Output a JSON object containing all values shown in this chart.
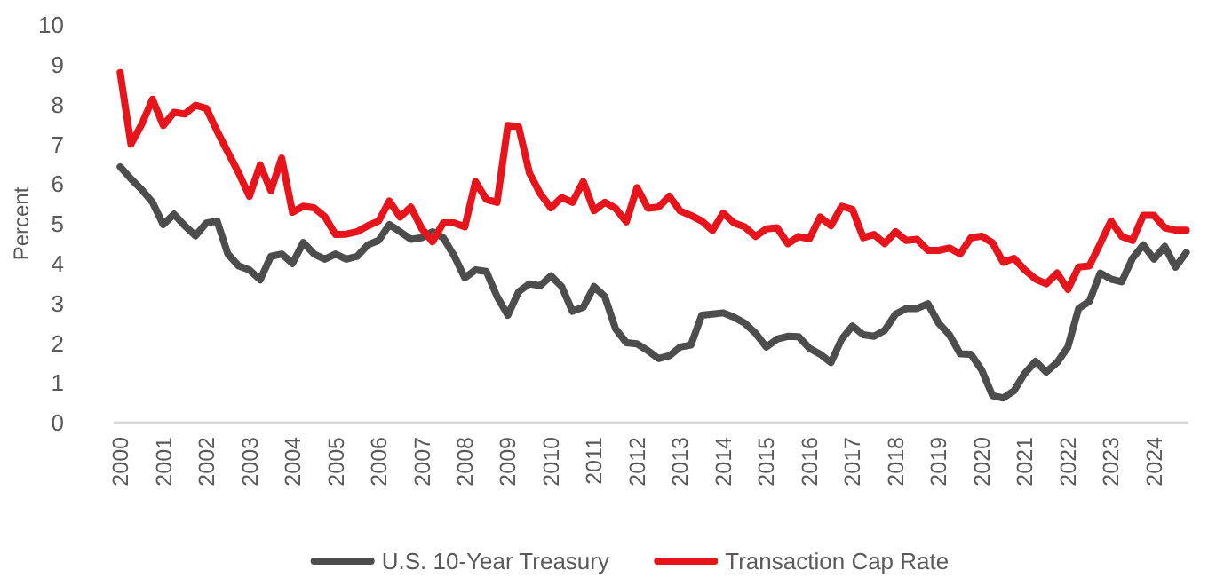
{
  "chart_data": {
    "type": "line",
    "ylabel": "Percent",
    "x": [
      2000,
      2000.25,
      2000.5,
      2000.75,
      2001,
      2001.25,
      2001.5,
      2001.75,
      2002,
      2002.25,
      2002.5,
      2002.75,
      2003,
      2003.25,
      2003.5,
      2003.75,
      2004,
      2004.25,
      2004.5,
      2004.75,
      2005,
      2005.25,
      2005.5,
      2005.75,
      2006,
      2006.25,
      2006.5,
      2006.75,
      2007,
      2007.25,
      2007.5,
      2007.75,
      2008,
      2008.25,
      2008.5,
      2008.75,
      2009,
      2009.25,
      2009.5,
      2009.75,
      2010,
      2010.25,
      2010.5,
      2010.75,
      2011,
      2011.25,
      2011.5,
      2011.75,
      2012,
      2012.25,
      2012.5,
      2012.75,
      2013,
      2013.25,
      2013.5,
      2013.75,
      2014,
      2014.25,
      2014.5,
      2014.75,
      2015,
      2015.25,
      2015.5,
      2015.75,
      2016,
      2016.25,
      2016.5,
      2016.75,
      2017,
      2017.25,
      2017.5,
      2017.75,
      2018,
      2018.25,
      2018.5,
      2018.75,
      2019,
      2019.25,
      2019.5,
      2019.75,
      2020,
      2020.25,
      2020.5,
      2020.75,
      2021,
      2021.25,
      2021.5,
      2021.75,
      2022,
      2022.25,
      2022.5,
      2022.75,
      2023,
      2023.25,
      2023.5,
      2023.75,
      2024,
      2024.25,
      2024.5,
      2024.75
    ],
    "series": [
      {
        "name": "U.S. 10-Year Treasury",
        "color": "#4d4d4d",
        "values": [
          6.43,
          6.13,
          5.86,
          5.54,
          4.98,
          5.24,
          4.95,
          4.7,
          5.02,
          5.07,
          4.24,
          3.94,
          3.84,
          3.59,
          4.18,
          4.24,
          4.0,
          4.53,
          4.24,
          4.11,
          4.24,
          4.11,
          4.18,
          4.47,
          4.58,
          4.98,
          4.8,
          4.61,
          4.65,
          4.8,
          4.65,
          4.2,
          3.64,
          3.84,
          3.8,
          3.17,
          2.7,
          3.29,
          3.49,
          3.44,
          3.69,
          3.42,
          2.8,
          2.9,
          3.42,
          3.17,
          2.36,
          2.01,
          1.98,
          1.81,
          1.61,
          1.68,
          1.9,
          1.95,
          2.7,
          2.73,
          2.76,
          2.65,
          2.5,
          2.25,
          1.9,
          2.1,
          2.17,
          2.16,
          1.87,
          1.72,
          1.51,
          2.1,
          2.43,
          2.21,
          2.17,
          2.32,
          2.73,
          2.87,
          2.87,
          2.99,
          2.5,
          2.21,
          1.73,
          1.72,
          1.32,
          0.68,
          0.62,
          0.8,
          1.24,
          1.54,
          1.27,
          1.51,
          1.9,
          2.87,
          3.05,
          3.76,
          3.61,
          3.54,
          4.13,
          4.47,
          4.11,
          4.43,
          3.91,
          4.28
        ]
      },
      {
        "name": "Transaction Cap Rate",
        "color": "#e8141b",
        "values": [
          8.8,
          7.0,
          7.5,
          8.13,
          7.47,
          7.8,
          7.76,
          7.98,
          7.9,
          7.33,
          6.8,
          6.28,
          5.69,
          6.48,
          5.83,
          6.65,
          5.29,
          5.44,
          5.4,
          5.18,
          4.73,
          4.74,
          4.8,
          4.95,
          5.07,
          5.57,
          5.17,
          5.42,
          4.88,
          4.55,
          5.02,
          5.02,
          4.92,
          6.06,
          5.61,
          5.54,
          7.47,
          7.44,
          6.28,
          5.76,
          5.4,
          5.66,
          5.54,
          6.06,
          5.33,
          5.54,
          5.39,
          5.05,
          5.91,
          5.39,
          5.42,
          5.69,
          5.32,
          5.21,
          5.07,
          4.83,
          5.27,
          5.02,
          4.92,
          4.68,
          4.87,
          4.9,
          4.5,
          4.68,
          4.62,
          5.17,
          4.95,
          5.44,
          5.36,
          4.65,
          4.73,
          4.5,
          4.8,
          4.58,
          4.61,
          4.33,
          4.33,
          4.39,
          4.24,
          4.65,
          4.69,
          4.52,
          4.03,
          4.13,
          3.84,
          3.61,
          3.49,
          3.76,
          3.35,
          3.91,
          3.94,
          4.5,
          5.07,
          4.68,
          4.58,
          5.21,
          5.21,
          4.9,
          4.84,
          4.84
        ]
      }
    ],
    "xlim": [
      1999.85,
      2024.8
    ],
    "xticks": [
      2000,
      2001,
      2002,
      2003,
      2004,
      2005,
      2006,
      2007,
      2008,
      2009,
      2010,
      2011,
      2012,
      2013,
      2014,
      2015,
      2016,
      2017,
      2018,
      2019,
      2020,
      2021,
      2022,
      2023,
      2024
    ],
    "ylim": [
      0,
      10
    ],
    "yticks": [
      0,
      1,
      2,
      3,
      4,
      5,
      6,
      7,
      8,
      9,
      10
    ],
    "grid": false,
    "legend": "bottom",
    "line_style": "solid",
    "marker": "none"
  }
}
